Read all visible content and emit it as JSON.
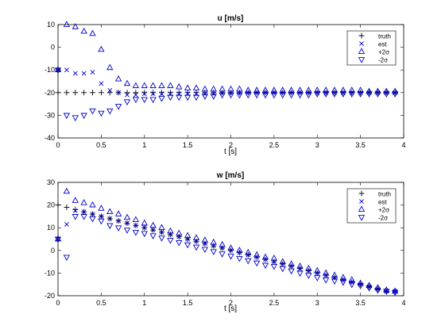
{
  "figure": {
    "background": "#ffffff"
  },
  "colors": {
    "truth": "#000000",
    "est": "#0000cc",
    "plus2sigma": "#0000cc",
    "minus2sigma": "#0000cc"
  },
  "chart_data": [
    {
      "type": "scatter",
      "title": "u [m/s]",
      "xlabel": "t [s]",
      "ylabel": "",
      "xlim": [
        0,
        4
      ],
      "ylim": [
        -40,
        10
      ],
      "xticks": [
        "0",
        "0.5",
        "1",
        "1.5",
        "2",
        "2.5",
        "3",
        "3.5",
        "4"
      ],
      "yticks": [
        "-40",
        "-30",
        "-20",
        "-10",
        "0",
        "10"
      ],
      "grid": false,
      "legend_position": "top-right",
      "legend": [
        "truth",
        "est",
        "+2σ",
        "-2σ"
      ],
      "x": [
        0,
        0.1,
        0.2,
        0.3,
        0.4,
        0.5,
        0.6,
        0.7,
        0.8,
        0.9,
        1.0,
        1.1,
        1.2,
        1.3,
        1.4,
        1.5,
        1.6,
        1.7,
        1.8,
        1.9,
        2.0,
        2.1,
        2.2,
        2.3,
        2.4,
        2.5,
        2.6,
        2.7,
        2.8,
        2.9,
        3.0,
        3.1,
        3.2,
        3.3,
        3.4,
        3.5,
        3.6,
        3.7,
        3.8,
        3.9
      ],
      "series": [
        {
          "name": "truth",
          "marker": "plus",
          "values": [
            -20,
            -20,
            -20,
            -20,
            -20,
            -20,
            -20,
            -20,
            -20,
            -20,
            -20,
            -20,
            -20,
            -20,
            -20,
            -20,
            -20,
            -20,
            -20,
            -20,
            -20,
            -20,
            -20,
            -20,
            -20,
            -20,
            -20,
            -20,
            -20,
            -20,
            -20,
            -20,
            -20,
            -20,
            -20,
            -20,
            -20,
            -20,
            -20,
            -20
          ]
        },
        {
          "name": "est",
          "marker": "x",
          "values": [
            -10,
            -10,
            -11.5,
            -11.5,
            -11,
            -16,
            -19,
            -20,
            -21,
            -21,
            -20.5,
            -20.5,
            -20.5,
            -20.5,
            -20.5,
            -20.5,
            -20.5,
            -20.5,
            -20.5,
            -20.2,
            -20.2,
            -20.2,
            -20,
            -20,
            -20,
            -20,
            -20,
            -20,
            -20,
            -20,
            -20,
            -20,
            -20,
            -20,
            -20,
            -20,
            -20,
            -20,
            -20,
            -20
          ]
        },
        {
          "name": "+2σ",
          "marker": "triangle-up",
          "values": [
            -10,
            10,
            9,
            7,
            6,
            -1,
            -9,
            -14,
            -16,
            -17,
            -17,
            -17,
            -17,
            -17,
            -17.5,
            -18,
            -18,
            -18.5,
            -18.5,
            -18.5,
            -18.5,
            -18.5,
            -19,
            -19,
            -19,
            -19,
            -19,
            -19,
            -19,
            -19,
            -19,
            -19,
            -19,
            -19,
            -19,
            -19,
            -19.5,
            -19.5,
            -19.5,
            -19.5
          ]
        },
        {
          "name": "-2σ",
          "marker": "triangle-down",
          "values": [
            -10,
            -30,
            -31,
            -30,
            -28,
            -29,
            -28,
            -26,
            -24,
            -23,
            -23,
            -23,
            -22.5,
            -22,
            -22,
            -22,
            -22,
            -21.5,
            -21.5,
            -21,
            -21,
            -21,
            -21,
            -21,
            -21,
            -21,
            -21,
            -21,
            -21,
            -21,
            -20.5,
            -20.5,
            -20.5,
            -20.5,
            -20.5,
            -20.5,
            -20.5,
            -20.5,
            -20.5,
            -20.5
          ]
        }
      ]
    },
    {
      "type": "scatter",
      "title": "w [m/s]",
      "xlabel": "t [s]",
      "ylabel": "",
      "xlim": [
        0,
        4
      ],
      "ylim": [
        -20,
        30
      ],
      "xticks": [
        "0",
        "0.5",
        "1",
        "1.5",
        "2",
        "2.5",
        "3",
        "3.5",
        "4"
      ],
      "yticks": [
        "-20",
        "-10",
        "0",
        "10",
        "20",
        "30"
      ],
      "grid": false,
      "legend_position": "top-right",
      "legend": [
        "truth",
        "est",
        "+2σ",
        "-2σ"
      ],
      "x": [
        0,
        0.1,
        0.2,
        0.3,
        0.4,
        0.5,
        0.6,
        0.7,
        0.8,
        0.9,
        1.0,
        1.1,
        1.2,
        1.3,
        1.4,
        1.5,
        1.6,
        1.7,
        1.8,
        1.9,
        2.0,
        2.1,
        2.2,
        2.3,
        2.4,
        2.5,
        2.6,
        2.7,
        2.8,
        2.9,
        3.0,
        3.1,
        3.2,
        3.3,
        3.4,
        3.5,
        3.6,
        3.7,
        3.8,
        3.9
      ],
      "series": [
        {
          "name": "truth",
          "marker": "plus",
          "values": [
            20,
            19,
            18,
            17,
            16,
            15,
            14,
            13,
            12,
            11,
            10,
            9,
            8,
            7,
            6,
            5,
            4,
            3,
            2,
            1,
            0,
            -1,
            -2,
            -3,
            -4,
            -5,
            -6,
            -7,
            -8,
            -9,
            -10,
            -11,
            -12,
            -13,
            -14,
            -15,
            -16,
            -17,
            -18,
            -18
          ]
        },
        {
          "name": "est",
          "marker": "x",
          "values": [
            5,
            11.5,
            17.5,
            17,
            16,
            15,
            14,
            13,
            12,
            11,
            10,
            9,
            8,
            7,
            6,
            5,
            4,
            3,
            2,
            1,
            0,
            -1,
            -2,
            -3,
            -4,
            -5,
            -6,
            -7,
            -8,
            -9,
            -10,
            -11,
            -12,
            -13,
            -14,
            -15,
            -16,
            -17,
            -18,
            -18
          ]
        },
        {
          "name": "+2σ",
          "marker": "triangle-up",
          "values": [
            5,
            26,
            22,
            21,
            20,
            18.5,
            17,
            16,
            14.5,
            13.5,
            12,
            11,
            10,
            8.5,
            7.5,
            6.5,
            5.5,
            4.5,
            3.5,
            2.5,
            1,
            0,
            -1,
            -2,
            -3,
            -3.5,
            -5,
            -6,
            -7,
            -8,
            -9,
            -10,
            -11,
            -12,
            -13,
            -14.5,
            -15.5,
            -16.5,
            -17.5,
            -18
          ]
        },
        {
          "name": "-2σ",
          "marker": "triangle-down",
          "values": [
            5,
            -3,
            15,
            15,
            14,
            13,
            11,
            10,
            9,
            8,
            7.5,
            6.5,
            5.5,
            4.5,
            3.5,
            2.5,
            1.5,
            0.5,
            -0.5,
            -1.5,
            -2.5,
            -3.5,
            -4.5,
            -5.5,
            -6.5,
            -7,
            -8,
            -9,
            -10,
            -11,
            -12,
            -13,
            -13.5,
            -14,
            -15,
            -15.5,
            -16.5,
            -17.5,
            -18,
            -18.5
          ]
        }
      ]
    }
  ]
}
